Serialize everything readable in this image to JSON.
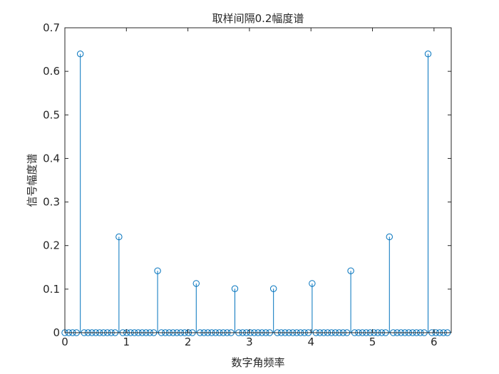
{
  "chart_data": {
    "type": "stem",
    "title": "取样间隔0.2幅度谱",
    "xlabel": "数字角频率",
    "ylabel": "信号幅度谱",
    "xlim": [
      0,
      6.28
    ],
    "ylim": [
      0,
      0.7
    ],
    "xticks": [
      "0",
      "1",
      "2",
      "3",
      "4",
      "5",
      "6"
    ],
    "yticks": [
      "0",
      "0.1",
      "0.2",
      "0.3",
      "0.4",
      "0.5",
      "0.6",
      "0.7"
    ],
    "grid": false,
    "color": "#0072BD",
    "x_start": 0,
    "x_step": 0.0628,
    "values": [
      0,
      0,
      0,
      0,
      0.64,
      0,
      0,
      0,
      0,
      0,
      0,
      0,
      0,
      0,
      0.22,
      0,
      0,
      0,
      0,
      0,
      0,
      0,
      0,
      0,
      0.142,
      0,
      0,
      0,
      0,
      0,
      0,
      0,
      0,
      0,
      0.113,
      0,
      0,
      0,
      0,
      0,
      0,
      0,
      0,
      0,
      0.101,
      0,
      0,
      0,
      0,
      0,
      0,
      0,
      0,
      0,
      0.101,
      0,
      0,
      0,
      0,
      0,
      0,
      0,
      0,
      0,
      0.113,
      0,
      0,
      0,
      0,
      0,
      0,
      0,
      0,
      0,
      0.142,
      0,
      0,
      0,
      0,
      0,
      0,
      0,
      0,
      0,
      0.22,
      0,
      0,
      0,
      0,
      0,
      0,
      0,
      0,
      0,
      0.64,
      0,
      0,
      0,
      0,
      0
    ]
  }
}
